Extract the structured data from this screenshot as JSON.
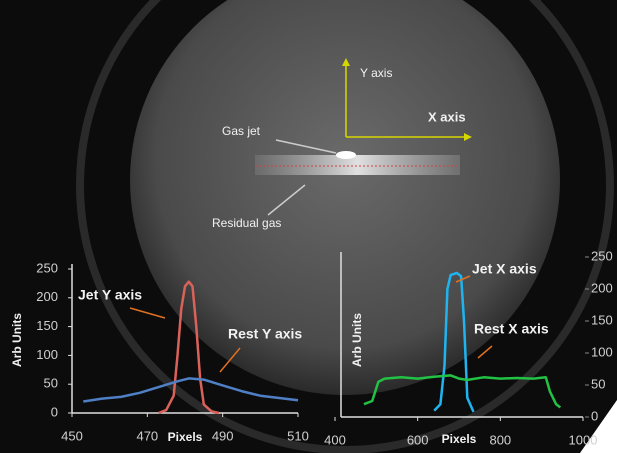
{
  "image_annotations": {
    "y_axis": "Y axis",
    "x_axis": "X axis",
    "gas_jet": "Gas jet",
    "residual_gas": "Residual gas"
  },
  "chart_data": [
    {
      "type": "line",
      "xlabel": "Pixels",
      "ylabel": "Arb Units",
      "xlim": [
        450,
        510
      ],
      "xticks": [
        450,
        470,
        490,
        510
      ],
      "ylim": [
        0,
        250
      ],
      "yticks": [
        0,
        50,
        100,
        150,
        200,
        250
      ],
      "series": [
        {
          "name": "Jet Y axis",
          "color": "#d9625a",
          "x": [
            473,
            475,
            477,
            478,
            479,
            480,
            481,
            482,
            483,
            484,
            485,
            487,
            489
          ],
          "values": [
            0,
            5,
            30,
            100,
            180,
            220,
            228,
            220,
            150,
            60,
            15,
            3,
            0
          ]
        },
        {
          "name": "Rest Y axis",
          "color": "#4f7fc4",
          "x": [
            453,
            458,
            463,
            468,
            473,
            478,
            481,
            485,
            490,
            495,
            500,
            505,
            510
          ],
          "values": [
            20,
            25,
            28,
            35,
            45,
            55,
            60,
            58,
            48,
            38,
            30,
            26,
            22
          ]
        }
      ]
    },
    {
      "type": "line",
      "xlabel": "Pixels",
      "ylabel": "Arb Units",
      "xlim": [
        400,
        1000
      ],
      "xticks": [
        400,
        600,
        800,
        1000
      ],
      "ylim": [
        0,
        250
      ],
      "yticks": [
        0,
        50,
        100,
        150,
        200,
        250
      ],
      "series": [
        {
          "name": "Jet X axis",
          "color": "#1fb4f0",
          "x": [
            640,
            655,
            665,
            672,
            680,
            695,
            705,
            712,
            720,
            735
          ],
          "values": [
            10,
            20,
            80,
            200,
            222,
            225,
            220,
            150,
            30,
            8
          ]
        },
        {
          "name": "Rest X axis",
          "color": "#22c244",
          "x": [
            470,
            490,
            505,
            520,
            560,
            600,
            640,
            680,
            700,
            720,
            760,
            800,
            840,
            880,
            910,
            920,
            935,
            945
          ],
          "values": [
            20,
            25,
            55,
            60,
            62,
            60,
            63,
            65,
            60,
            58,
            62,
            60,
            61,
            60,
            62,
            40,
            20,
            15
          ]
        }
      ]
    }
  ]
}
